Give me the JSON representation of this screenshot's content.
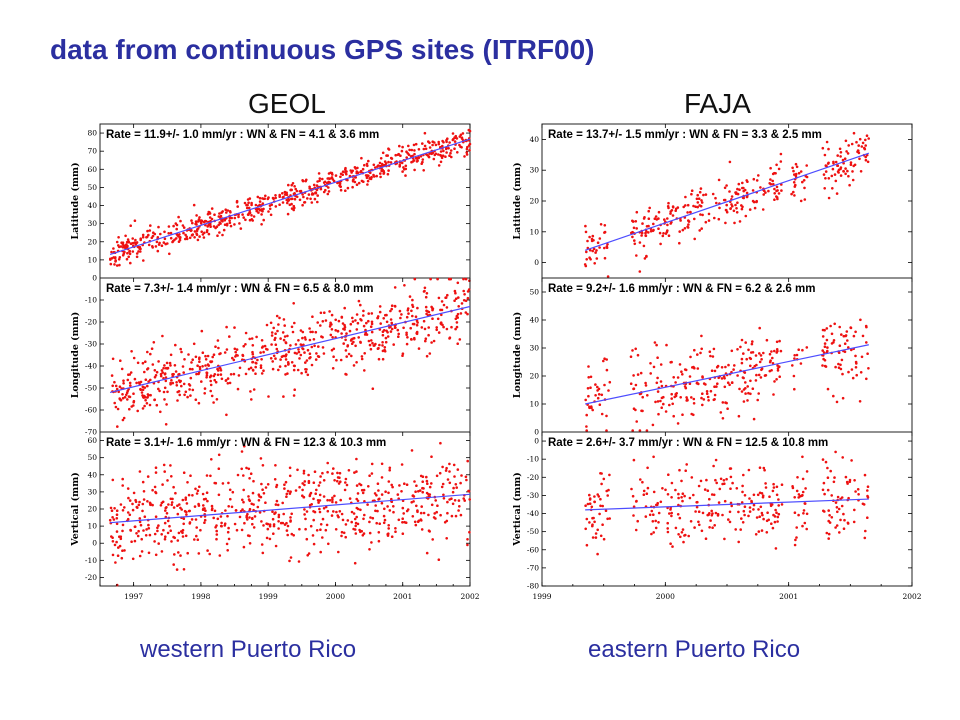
{
  "slide": {
    "title": "data from continuous GPS sites (ITRF00)",
    "captions": {
      "left": "western Puerto Rico",
      "right": "eastern Puerto Rico"
    }
  },
  "colors": {
    "title": "#2b2fa0",
    "points": "#ee1111",
    "trend": "#4d4dff"
  },
  "chart_data": [
    {
      "type": "scatter",
      "station": "GEOL",
      "x_ticks": [
        "1997",
        "1998",
        "1999",
        "2000",
        "2001",
        "2002"
      ],
      "xlim": [
        1996.5,
        2002.0
      ],
      "data_span": [
        1996.65,
        2002.0
      ],
      "panels": [
        {
          "ylabel": "Latitude (mm)",
          "ylim": [
            0,
            85
          ],
          "yticks": [
            0,
            10,
            20,
            30,
            40,
            50,
            60,
            70,
            80
          ],
          "rate_text": "Rate = 11.9+/- 1.0 mm/yr : WN & FN = 4.1 & 3.6 mm",
          "trend": {
            "start": 13,
            "slope_mm_per_yr": 11.9
          },
          "scatter_mm": 4
        },
        {
          "ylabel": "Longitude (mm)",
          "ylim": [
            -70,
            0
          ],
          "yticks": [
            -70,
            -60,
            -50,
            -40,
            -30,
            -20,
            -10
          ],
          "rate_text": "Rate = 7.3+/- 1.4 mm/yr : WN & FN = 6.5 & 8.0 mm",
          "trend": {
            "start": -52,
            "slope_mm_per_yr": 7.3
          },
          "scatter_mm": 8
        },
        {
          "ylabel": "Vertical (mm)",
          "ylim": [
            -25,
            65
          ],
          "yticks": [
            -20,
            -10,
            0,
            10,
            20,
            30,
            40,
            50,
            60
          ],
          "rate_text": "Rate = 3.1+/- 1.6 mm/yr : WN & FN = 12.3 & 10.3 mm",
          "trend": {
            "start": 12,
            "slope_mm_per_yr": 3.1
          },
          "scatter_mm": 13
        }
      ]
    },
    {
      "type": "scatter",
      "station": "FAJA",
      "x_ticks": [
        "1999",
        "2000",
        "2001",
        "2002"
      ],
      "xlim": [
        1999.0,
        2002.0
      ],
      "data_span": [
        1999.35,
        2001.65
      ],
      "panels": [
        {
          "ylabel": "Latitude (mm)",
          "ylim": [
            -5,
            45
          ],
          "yticks": [
            0,
            10,
            20,
            30,
            40
          ],
          "rate_text": "Rate =  13.7+/- 1.5 mm/yr : WN & FN =  3.3 & 2.5 mm",
          "trend": {
            "start": 4,
            "slope_mm_per_yr": 13.7
          },
          "scatter_mm": 4
        },
        {
          "ylabel": "Longitude (mm)",
          "ylim": [
            0,
            55
          ],
          "yticks": [
            0,
            10,
            20,
            30,
            40,
            50
          ],
          "rate_text": "Rate =   9.2+/- 1.6 mm/yr : WN & FN =  6.2 & 2.6 mm",
          "trend": {
            "start": 10,
            "slope_mm_per_yr": 9.2
          },
          "scatter_mm": 7
        },
        {
          "ylabel": "Vertical (mm)",
          "ylim": [
            -80,
            5
          ],
          "yticks": [
            -80,
            -70,
            -60,
            -50,
            -40,
            -30,
            -20,
            -10,
            0
          ],
          "rate_text": "Rate =   2.6+/- 3.7 mm/yr : WN & FN = 12.5 & 10.8 mm",
          "trend": {
            "start": -38,
            "slope_mm_per_yr": 2.6
          },
          "scatter_mm": 11
        }
      ]
    }
  ]
}
